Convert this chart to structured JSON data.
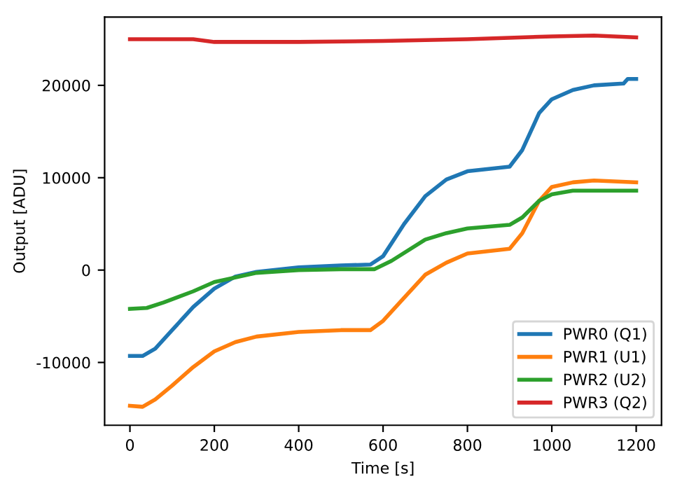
{
  "chart_data": {
    "type": "line",
    "xlabel": "Time [s]",
    "ylabel": "Output [ADU]",
    "xlim": [
      -60,
      1260
    ],
    "ylim": [
      -16800,
      27400
    ],
    "xticks": [
      0,
      200,
      400,
      600,
      800,
      1000,
      1200
    ],
    "yticks": [
      -10000,
      0,
      10000,
      20000
    ],
    "grid": false,
    "legend": "bottom right",
    "marker": "none",
    "line_style": "solid",
    "series": [
      {
        "name": "PWR0 (Q1)",
        "color": "#1f77b4",
        "x": [
          0,
          30,
          60,
          100,
          150,
          200,
          250,
          300,
          400,
          500,
          570,
          600,
          650,
          700,
          750,
          800,
          900,
          930,
          970,
          1000,
          1050,
          1100,
          1170,
          1180,
          1200
        ],
        "values": [
          -9300,
          -9300,
          -8500,
          -6500,
          -4000,
          -2000,
          -700,
          -200,
          300,
          500,
          600,
          1500,
          5000,
          8000,
          9800,
          10700,
          11200,
          13000,
          17000,
          18500,
          19500,
          20000,
          20200,
          20700,
          20700
        ]
      },
      {
        "name": "PWR1 (U1)",
        "color": "#ff7f0e",
        "x": [
          0,
          30,
          60,
          100,
          150,
          200,
          250,
          300,
          400,
          500,
          570,
          600,
          650,
          700,
          750,
          800,
          900,
          930,
          970,
          1000,
          1050,
          1100,
          1200
        ],
        "values": [
          -14700,
          -14800,
          -14000,
          -12500,
          -10500,
          -8800,
          -7800,
          -7200,
          -6700,
          -6500,
          -6500,
          -5500,
          -3000,
          -500,
          800,
          1800,
          2300,
          4000,
          7500,
          9000,
          9500,
          9700,
          9500
        ]
      },
      {
        "name": "PWR2 (U2)",
        "color": "#2ca02c",
        "x": [
          0,
          40,
          80,
          150,
          200,
          300,
          400,
          500,
          580,
          620,
          700,
          750,
          800,
          900,
          930,
          970,
          1000,
          1050,
          1200
        ],
        "values": [
          -4200,
          -4100,
          -3500,
          -2300,
          -1300,
          -300,
          0,
          100,
          100,
          1000,
          3300,
          4000,
          4500,
          4900,
          5700,
          7500,
          8200,
          8600,
          8600
        ]
      },
      {
        "name": "PWR3 (Q2)",
        "color": "#d62728",
        "x": [
          0,
          150,
          200,
          400,
          600,
          800,
          1000,
          1100,
          1200
        ],
        "values": [
          25000,
          25000,
          24700,
          24700,
          24800,
          25000,
          25300,
          25400,
          25200
        ]
      }
    ]
  }
}
